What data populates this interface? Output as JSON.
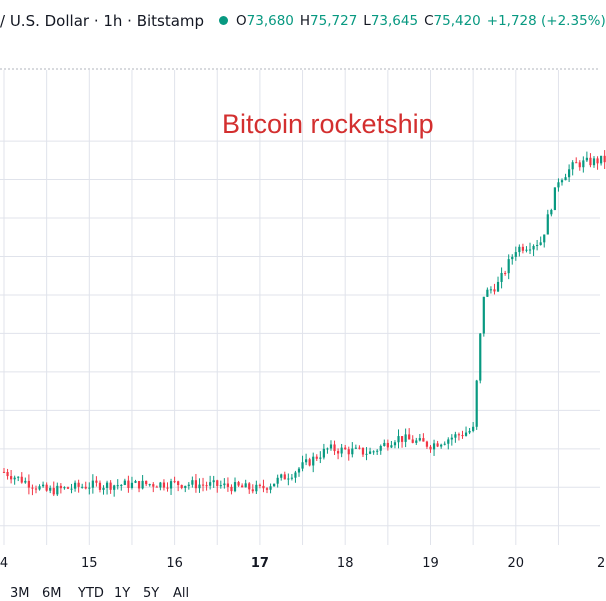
{
  "header": {
    "symbol_text": "/ U.S. Dollar · 1h · Bitstamp",
    "ohlc": {
      "open_key": "O",
      "open": "73,680",
      "high_key": "H",
      "high": "75,727",
      "low_key": "L",
      "low": "73,645",
      "close_key": "C",
      "close": "75,420",
      "change": "+1,728 (+2.35%)"
    }
  },
  "annotation": {
    "text": "Bitcoin rocketship",
    "color": "#d32f2f"
  },
  "colors": {
    "up": "#089981",
    "down": "#f23645",
    "grid": "#e0e3eb",
    "text": "#131722"
  },
  "bottom_bar": {
    "timeframes": [
      "3M",
      "6M",
      "YTD",
      "1Y",
      "5Y",
      "All"
    ]
  },
  "chart_data": {
    "type": "candlestick",
    "title": "",
    "xlabel": "",
    "ylabel": "",
    "x_ticks": [
      {
        "label": "4",
        "day": 14,
        "bold": false
      },
      {
        "label": "15",
        "day": 15,
        "bold": false
      },
      {
        "label": "16",
        "day": 16,
        "bold": false
      },
      {
        "label": "17",
        "day": 17,
        "bold": true
      },
      {
        "label": "18",
        "day": 18,
        "bold": false
      },
      {
        "label": "19",
        "day": 19,
        "bold": false
      },
      {
        "label": "20",
        "day": 20,
        "bold": false
      },
      {
        "label": "2",
        "day": 21,
        "bold": false
      }
    ],
    "x_range_days": [
      14,
      21.1
    ],
    "y_range": [
      65500,
      76600
    ],
    "grid": true,
    "key_closes": [
      {
        "day": 14.0,
        "close": 67400
      },
      {
        "day": 14.5,
        "close": 66900
      },
      {
        "day": 15.0,
        "close": 67050
      },
      {
        "day": 16.0,
        "close": 67100
      },
      {
        "day": 16.5,
        "close": 67050
      },
      {
        "day": 17.0,
        "close": 66950
      },
      {
        "day": 17.4,
        "close": 67400
      },
      {
        "day": 17.8,
        "close": 68000
      },
      {
        "day": 18.3,
        "close": 67900
      },
      {
        "day": 18.6,
        "close": 68300
      },
      {
        "day": 19.0,
        "close": 68100
      },
      {
        "day": 19.5,
        "close": 68500
      },
      {
        "day": 19.62,
        "close": 72000
      },
      {
        "day": 19.8,
        "close": 72300
      },
      {
        "day": 20.0,
        "close": 73200
      },
      {
        "day": 20.3,
        "close": 73400
      },
      {
        "day": 20.5,
        "close": 75000
      },
      {
        "day": 20.7,
        "close": 75400
      },
      {
        "day": 21.0,
        "close": 75500
      }
    ]
  }
}
